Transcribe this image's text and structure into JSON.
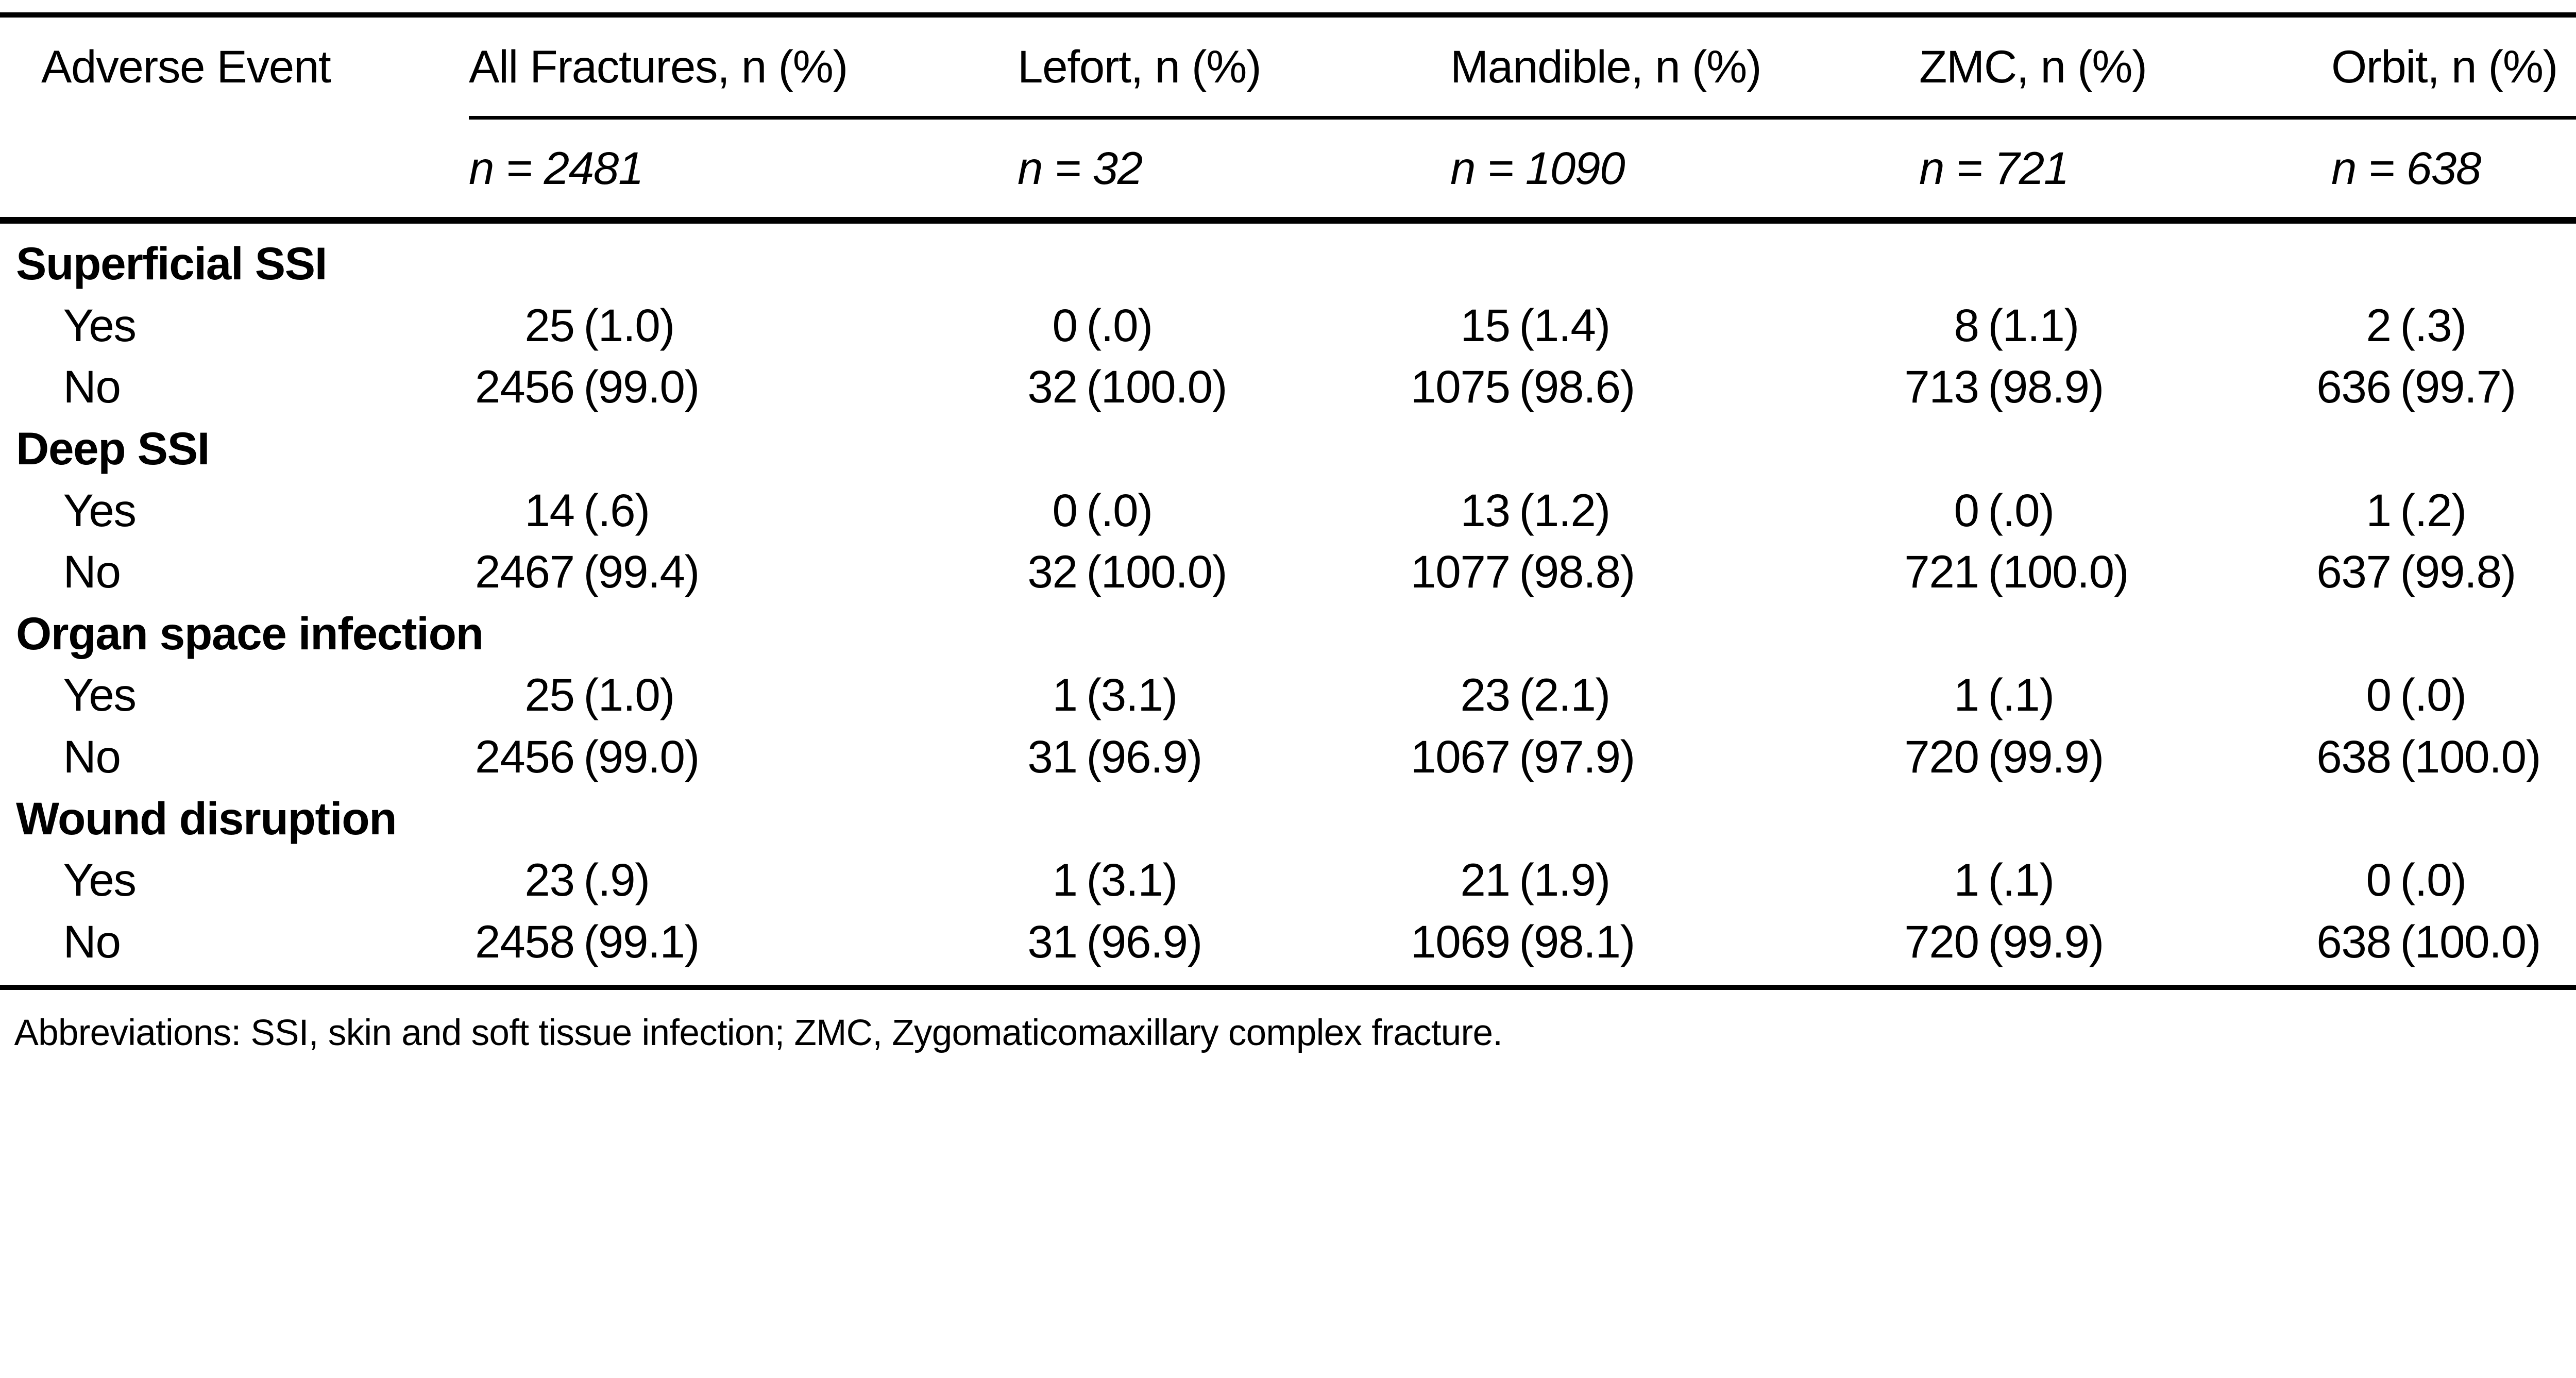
{
  "table": {
    "columns": [
      {
        "label": "Adverse Event",
        "sub": ""
      },
      {
        "label": "All Fractures, n (%)",
        "sub": "n = 2481"
      },
      {
        "label": "Lefort, n (%)",
        "sub": "n = 32"
      },
      {
        "label": "Mandible, n (%)",
        "sub": "n = 1090"
      },
      {
        "label": "ZMC, n (%)",
        "sub": "n = 721"
      },
      {
        "label": "Orbit, n (%)",
        "sub": "n = 638"
      }
    ],
    "sections": [
      {
        "header": "Superficial SSI",
        "rows": [
          {
            "label": "Yes",
            "cells": [
              "25 (1.0)",
              "0 (.0)",
              "15 (1.4)",
              "8 (1.1)",
              "2 (.3)"
            ]
          },
          {
            "label": "No",
            "cells": [
              "2456 (99.0)",
              "32 (100.0)",
              "1075 (98.6)",
              "713(98.9)",
              "636 (99.7)"
            ]
          }
        ]
      },
      {
        "header": "Deep SSI",
        "rows": [
          {
            "label": "Yes",
            "cells": [
              "14 (.6)",
              "0 (.0)",
              "13 (1.2)",
              "0 (.0)",
              "1 (.2)"
            ]
          },
          {
            "label": "No",
            "cells": [
              "2467 (99.4)",
              "32 (100.0)",
              "1077 (98.8)",
              "721 (100.0)",
              "637 (99.8)"
            ]
          }
        ]
      },
      {
        "header": "Organ space infection",
        "rows": [
          {
            "label": "Yes",
            "cells": [
              "25 (1.0)",
              "1 (3.1)",
              "23 (2.1)",
              "1 (.1)",
              "0 (.0)"
            ]
          },
          {
            "label": "No",
            "cells": [
              "2456 (99.0)",
              "31 (96.9)",
              "1067 (97.9)",
              "720 (99.9)",
              "638 (100.0)"
            ]
          }
        ]
      },
      {
        "header": "Wound disruption",
        "rows": [
          {
            "label": "Yes",
            "cells": [
              "23 (.9)",
              "1 (3.1)",
              "21 (1.9)",
              "1 (.1)",
              "0 (.0)"
            ]
          },
          {
            "label": "No",
            "cells": [
              "2458 (99.1)",
              "31 (96.9)",
              "1069 (98.1)",
              "720 (99.9)",
              "638 (100.0)"
            ]
          }
        ]
      }
    ],
    "footnote": "Abbreviations: SSI, skin and soft tissue infection; ZMC, Zygomaticomaxillary complex fracture."
  }
}
